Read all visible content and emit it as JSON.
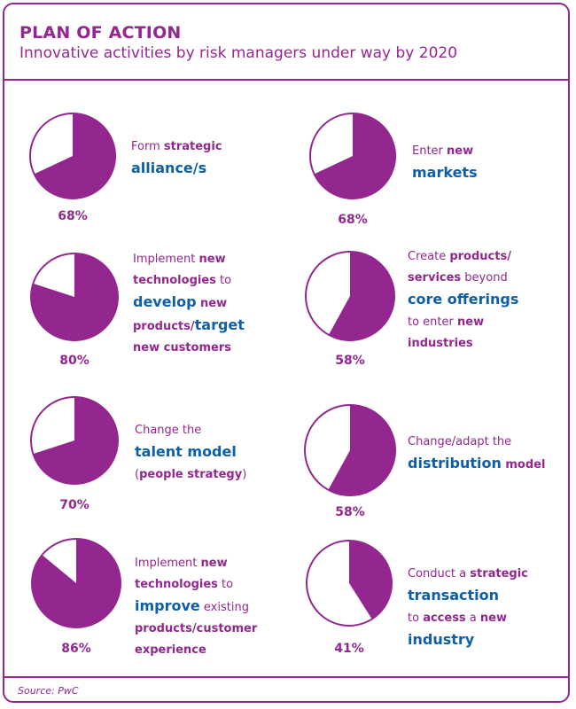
{
  "header": {
    "title": "PLAN OF ACTION",
    "subtitle": "Innovative activities by risk managers under way by 2020"
  },
  "source": "Source: PwC",
  "colors": {
    "accent": "#93278f",
    "emphasis": "#0e5fa6",
    "background": "#ffffff"
  },
  "chart_data": {
    "type": "pie",
    "title": "PLAN OF ACTION",
    "subtitle": "Innovative activities by risk managers under way by 2020",
    "items": [
      {
        "value": 68,
        "value_label": "68%",
        "label_lines": [
          [
            {
              "t": "Form ",
              "s": "p"
            },
            {
              "t": "strategic",
              "s": "pb"
            }
          ],
          [
            {
              "t": "alliance/s",
              "s": "b"
            }
          ]
        ]
      },
      {
        "value": 68,
        "value_label": "68%",
        "label_lines": [
          [
            {
              "t": "Enter ",
              "s": "p"
            },
            {
              "t": "new",
              "s": "pb"
            }
          ],
          [
            {
              "t": "markets",
              "s": "b"
            }
          ]
        ]
      },
      {
        "value": 80,
        "value_label": "80%",
        "label_lines": [
          [
            {
              "t": "Implement ",
              "s": "p"
            },
            {
              "t": "new",
              "s": "pb"
            }
          ],
          [
            {
              "t": "technologies",
              "s": "pb"
            },
            {
              "t": " to",
              "s": "p"
            }
          ],
          [
            {
              "t": "develop",
              "s": "b"
            },
            {
              "t": " new",
              "s": "pb"
            }
          ],
          [
            {
              "t": "products/",
              "s": "pb"
            },
            {
              "t": "target",
              "s": "b"
            }
          ],
          [
            {
              "t": "new customers",
              "s": "pb"
            }
          ]
        ]
      },
      {
        "value": 58,
        "value_label": "58%",
        "label_lines": [
          [
            {
              "t": "Create ",
              "s": "p"
            },
            {
              "t": "products/",
              "s": "pb"
            }
          ],
          [
            {
              "t": "services",
              "s": "pb"
            },
            {
              "t": " beyond",
              "s": "p"
            }
          ],
          [
            {
              "t": "core offerings",
              "s": "b"
            }
          ],
          [
            {
              "t": "to enter ",
              "s": "p"
            },
            {
              "t": "new",
              "s": "pb"
            }
          ],
          [
            {
              "t": "industries",
              "s": "pb"
            }
          ]
        ]
      },
      {
        "value": 70,
        "value_label": "70%",
        "label_lines": [
          [
            {
              "t": "Change the",
              "s": "p"
            }
          ],
          [
            {
              "t": "talent model",
              "s": "b"
            }
          ],
          [
            {
              "t": "(",
              "s": "p"
            },
            {
              "t": "people strategy",
              "s": "pb"
            },
            {
              "t": ")",
              "s": "p"
            }
          ]
        ]
      },
      {
        "value": 58,
        "value_label": "58%",
        "label_lines": [
          [
            {
              "t": "Change/adapt the",
              "s": "p"
            }
          ],
          [
            {
              "t": "distribution",
              "s": "b"
            },
            {
              "t": " model",
              "s": "pb"
            }
          ]
        ]
      },
      {
        "value": 86,
        "value_label": "86%",
        "label_lines": [
          [
            {
              "t": "Implement ",
              "s": "p"
            },
            {
              "t": "new",
              "s": "pb"
            }
          ],
          [
            {
              "t": "technologies",
              "s": "pb"
            },
            {
              "t": " to",
              "s": "p"
            }
          ],
          [
            {
              "t": "improve",
              "s": "b"
            },
            {
              "t": " existing",
              "s": "p"
            }
          ],
          [
            {
              "t": "products/customer",
              "s": "pb"
            }
          ],
          [
            {
              "t": "experience",
              "s": "pb"
            }
          ]
        ]
      },
      {
        "value": 41,
        "value_label": "41%",
        "label_lines": [
          [
            {
              "t": "Conduct a ",
              "s": "p"
            },
            {
              "t": "strategic",
              "s": "pb"
            }
          ],
          [
            {
              "t": "transaction",
              "s": "b"
            }
          ],
          [
            {
              "t": "to ",
              "s": "p"
            },
            {
              "t": "access",
              "s": "pb"
            },
            {
              "t": " a ",
              "s": "p"
            },
            {
              "t": "new",
              "s": "pb"
            }
          ],
          [
            {
              "t": "industry",
              "s": "b"
            }
          ]
        ]
      }
    ]
  }
}
